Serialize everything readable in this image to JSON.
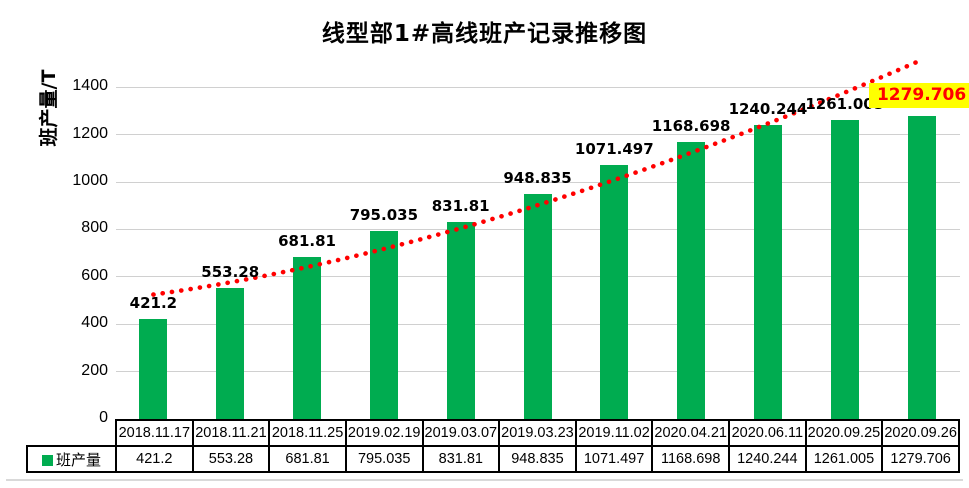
{
  "title": "线型部1#高线班产记录推移图",
  "y_axis": {
    "label": "班产量/T",
    "ticks": [
      0,
      200,
      400,
      600,
      800,
      1000,
      1200,
      1400
    ],
    "max": 1500
  },
  "legend": {
    "label": "班产量",
    "swatch_color": "#00AC50"
  },
  "chart_data": {
    "type": "bar",
    "title": "线型部1#高线班产记录推移图",
    "ylabel": "班产量/T",
    "xlabel": "",
    "ylim": [
      0,
      1500
    ],
    "yticks": [
      0,
      200,
      400,
      600,
      800,
      1000,
      1200,
      1400
    ],
    "grid": "horizontal",
    "legend_position": "data-table-left",
    "categories": [
      "2018.11.17",
      "2018.11.21",
      "2018.11.25",
      "2019.02.19",
      "2019.03.07",
      "2019.03.23",
      "2019.11.02",
      "2020.04.21",
      "2020.06.11",
      "2020.09.25",
      "2020.09.26"
    ],
    "series": [
      {
        "name": "班产量",
        "color": "#00AC50",
        "values": [
          421.2,
          553.28,
          681.81,
          795.035,
          831.81,
          948.835,
          1071.497,
          1168.698,
          1240.244,
          1261.005,
          1279.706
        ]
      }
    ],
    "data_labels": true,
    "highlight_last_label": {
      "background": "#FFFF00",
      "text_color": "#FF0000"
    },
    "trendline": {
      "style": "dotted",
      "color": "#FF0000",
      "anchors_u": [
        0,
        4.68,
        10
      ],
      "anchors_v": [
        525,
        870,
        1515
      ]
    },
    "data_table_shown": true
  },
  "colors": {
    "bar": "#00AC50",
    "trendline": "#FF0000",
    "gridline": "#D0D0D0",
    "highlight_bg": "#FFFF00",
    "highlight_text": "#FF0000",
    "table_border": "#000000",
    "chart_edge": "#D9D9D9",
    "label_text": "#000000"
  }
}
